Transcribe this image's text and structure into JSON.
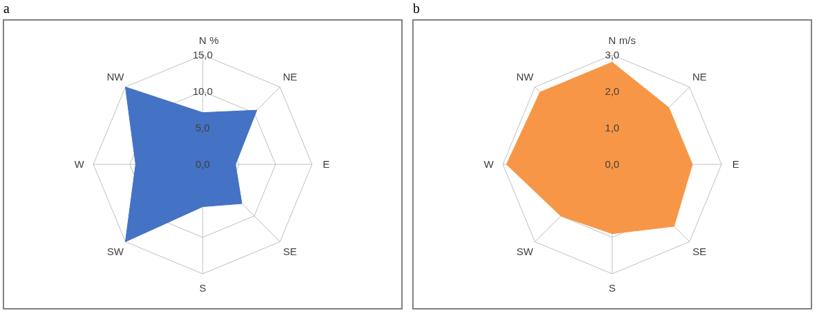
{
  "chart_data": [
    {
      "type": "radar",
      "title": "a",
      "ylabel": "%",
      "categories": [
        "N",
        "NE",
        "E",
        "SE",
        "S",
        "SW",
        "W",
        "NW"
      ],
      "grid": true,
      "series": [
        {
          "color": "#4472c4",
          "values": [
            7.1,
            10.5,
            4.5,
            7.6,
            5.8,
            15.0,
            9.2,
            15.0
          ]
        }
      ],
      "ylim": [
        0,
        15
      ],
      "yticks": [
        {
          "value": 0,
          "label": "0,0"
        },
        {
          "value": 5,
          "label": "5,0"
        },
        {
          "value": 10,
          "label": "10,0"
        },
        {
          "value": 15,
          "label": "15,0"
        }
      ]
    },
    {
      "type": "radar",
      "title": "b",
      "ylabel": "m/s",
      "categories": [
        "N",
        "NE",
        "E",
        "SE",
        "S",
        "SW",
        "W",
        "NW"
      ],
      "grid": true,
      "series": [
        {
          "color": "#f79646",
          "values": [
            2.8,
            2.2,
            2.2,
            2.4,
            1.9,
            2.0,
            2.9,
            2.8
          ]
        }
      ],
      "ylim": [
        0,
        3
      ],
      "yticks": [
        {
          "value": 0,
          "label": "0,0"
        },
        {
          "value": 1,
          "label": "1,0"
        },
        {
          "value": 2,
          "label": "2,0"
        },
        {
          "value": 3,
          "label": "3,0"
        }
      ]
    }
  ]
}
